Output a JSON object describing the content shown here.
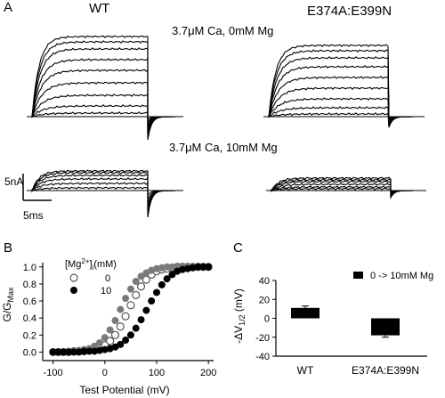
{
  "panels": {
    "a_letter": "A",
    "b_letter": "B",
    "c_letter": "C"
  },
  "traces": {
    "wt_header": "WT",
    "mutant_header": "E374A:E399N",
    "condition_0mg": "3.7μM Ca, 0mM Mg",
    "condition_10mg": "3.7μM Ca, 10mM Mg",
    "scale_current": "5nA",
    "scale_time": "5ms"
  },
  "chart_data": [
    {
      "type": "scatter",
      "xlabel": "Test Potential (mV)",
      "ylabel": "G/G_Max",
      "xlim": [
        -120,
        210
      ],
      "ylim": [
        -0.1,
        1.05
      ],
      "xticks": [
        -100,
        0,
        100,
        200
      ],
      "yticks": [
        0.0,
        0.2,
        0.4,
        0.6,
        0.8,
        1.0
      ],
      "legend_title": "[Mg2+]i(mM)",
      "legend_placement": "top-left",
      "series": [
        {
          "name": "0",
          "marker": "open-circle",
          "color": "#555555",
          "x": [
            -100,
            -90,
            -80,
            -70,
            -60,
            -50,
            -40,
            -30,
            -20,
            -10,
            0,
            10,
            20,
            30,
            40,
            50,
            60,
            70,
            80,
            90,
            100,
            110,
            120,
            130,
            140,
            150,
            160,
            170,
            180,
            190,
            200
          ],
          "y": [
            0.0,
            0.0,
            0.0,
            0.0,
            0.01,
            0.01,
            0.01,
            0.02,
            0.03,
            0.05,
            0.08,
            0.13,
            0.2,
            0.3,
            0.42,
            0.55,
            0.67,
            0.77,
            0.85,
            0.91,
            0.95,
            0.97,
            0.98,
            0.99,
            1.0,
            1.0,
            1.0,
            1.0,
            1.0,
            1.0,
            1.0
          ]
        },
        {
          "name": "0",
          "marker": "filled-circle-gray",
          "color": "#7a7a7a",
          "x": [
            -100,
            -90,
            -80,
            -70,
            -60,
            -50,
            -40,
            -30,
            -20,
            -10,
            0,
            10,
            20,
            30,
            40,
            50,
            60,
            70,
            80,
            90,
            100,
            110,
            120,
            130,
            140,
            150,
            160,
            170,
            180,
            190,
            200
          ],
          "y": [
            0.0,
            0.0,
            0.0,
            0.01,
            0.01,
            0.02,
            0.03,
            0.04,
            0.07,
            0.11,
            0.17,
            0.26,
            0.37,
            0.5,
            0.63,
            0.74,
            0.83,
            0.89,
            0.93,
            0.96,
            0.98,
            0.99,
            1.0,
            1.0,
            1.0,
            1.0,
            1.0,
            1.0,
            1.0,
            1.0,
            1.0
          ]
        },
        {
          "name": "10",
          "marker": "filled-circle",
          "color": "#000000",
          "x": [
            -100,
            -90,
            -80,
            -70,
            -60,
            -50,
            -40,
            -30,
            -20,
            -10,
            0,
            10,
            20,
            30,
            40,
            50,
            60,
            70,
            80,
            90,
            100,
            110,
            120,
            130,
            140,
            150,
            160,
            170,
            180,
            190,
            200
          ],
          "y": [
            0.0,
            0.0,
            0.0,
            0.0,
            0.0,
            0.0,
            0.01,
            0.01,
            0.01,
            0.02,
            0.03,
            0.04,
            0.06,
            0.09,
            0.14,
            0.2,
            0.28,
            0.38,
            0.49,
            0.6,
            0.7,
            0.79,
            0.86,
            0.91,
            0.95,
            0.97,
            0.98,
            0.99,
            1.0,
            1.0,
            1.0
          ]
        }
      ]
    },
    {
      "type": "bar",
      "ylabel": "-ΔV1/2 (mV)",
      "categories": [
        "WT",
        "E374A:E399N"
      ],
      "values": [
        11,
        -18
      ],
      "errors": [
        2,
        2
      ],
      "ylim": [
        -40,
        40
      ],
      "yticks": [
        -40,
        -20,
        0,
        20,
        40
      ],
      "legend_entry": "0 -> 10mM Mg",
      "legend_placement": "top-right",
      "bar_color": "#000000"
    }
  ]
}
